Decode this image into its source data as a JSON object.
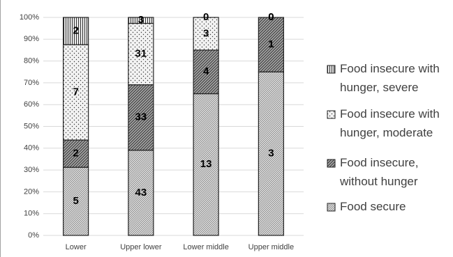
{
  "chart_data": {
    "type": "stacked_percent",
    "categories": [
      "Lower",
      "Upper lower",
      "Lower middle",
      "Upper middle"
    ],
    "series": [
      {
        "name": "Food secure",
        "color": "#d9d9d9",
        "values": [
          5,
          43,
          13,
          3
        ]
      },
      {
        "name": "Food insecure, without hunger",
        "color": "#a6a6a6",
        "values": [
          2,
          33,
          4,
          1
        ]
      },
      {
        "name": "Food insecure with hunger, moderate",
        "color": "#f2f2f2",
        "values": [
          7,
          31,
          3,
          0
        ]
      },
      {
        "name": "Food insecure with hunger, severe",
        "color": "#ffffff",
        "values": [
          2,
          3,
          0,
          0
        ]
      }
    ],
    "ylim": [
      0,
      100
    ],
    "yticks": [
      {
        "value": 0,
        "label": "0%"
      },
      {
        "value": 10,
        "label": "10%"
      },
      {
        "value": 20,
        "label": "20%"
      },
      {
        "value": 30,
        "label": "30%"
      },
      {
        "value": 40,
        "label": "40%"
      },
      {
        "value": 50,
        "label": "50%"
      },
      {
        "value": 60,
        "label": "60%"
      },
      {
        "value": 70,
        "label": "70%"
      },
      {
        "value": 80,
        "label": "80%"
      },
      {
        "value": 90,
        "label": "90%"
      },
      {
        "value": 100,
        "label": "100%"
      }
    ],
    "grid": true
  }
}
